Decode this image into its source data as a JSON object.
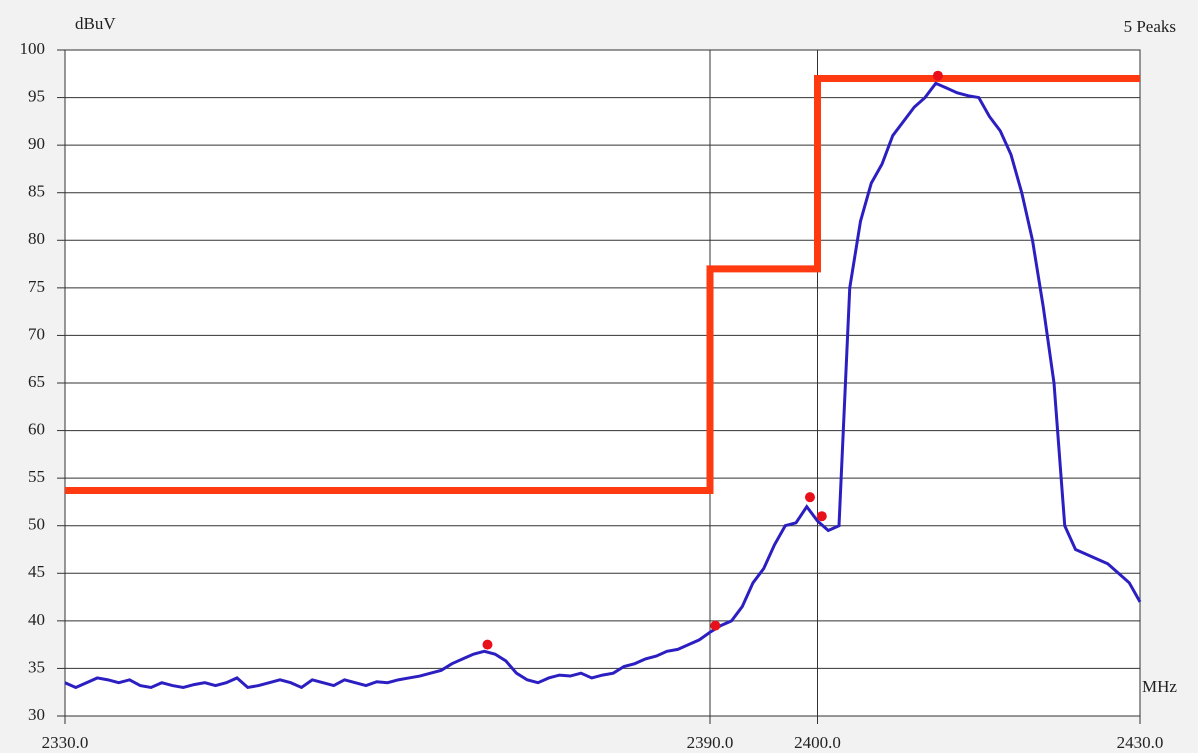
{
  "chart_data": {
    "type": "line",
    "y_label": "dBuV",
    "x_label": "MHz",
    "annotation": "5 Peaks",
    "xlim": [
      2330,
      2430
    ],
    "ylim": [
      30,
      100
    ],
    "xticks": [
      {
        "value": 2330,
        "label": "2330.0"
      },
      {
        "value": 2390,
        "label": "2390.0"
      },
      {
        "value": 2400,
        "label": "2400.0"
      },
      {
        "value": 2430,
        "label": "2430.0"
      }
    ],
    "yticks": [
      30,
      35,
      40,
      45,
      50,
      55,
      60,
      65,
      70,
      75,
      80,
      85,
      90,
      95,
      100
    ],
    "grid": true,
    "series": [
      {
        "color": "#ff3a10",
        "x": [
          2330,
          2390,
          2390,
          2400,
          2400,
          2430
        ],
        "values": [
          53.7,
          53.7,
          77,
          77,
          97,
          97
        ]
      },
      {
        "color": "#2c1fc2",
        "x": [
          2330,
          2331,
          2332,
          2333,
          2334,
          2335,
          2336,
          2337,
          2338,
          2339,
          2340,
          2341,
          2342,
          2343,
          2344,
          2345,
          2346,
          2347,
          2348,
          2349,
          2350,
          2351,
          2352,
          2353,
          2354,
          2355,
          2356,
          2357,
          2358,
          2359,
          2360,
          2361,
          2362,
          2363,
          2364,
          2365,
          2366,
          2367,
          2368,
          2369,
          2370,
          2371,
          2372,
          2373,
          2374,
          2375,
          2376,
          2377,
          2378,
          2379,
          2380,
          2381,
          2382,
          2383,
          2384,
          2385,
          2386,
          2387,
          2388,
          2389,
          2390,
          2391,
          2392,
          2393,
          2394,
          2395,
          2396,
          2397,
          2398,
          2399,
          2400,
          2401,
          2402,
          2403,
          2404,
          2405,
          2406,
          2407,
          2408,
          2409,
          2410,
          2411,
          2412,
          2413,
          2414,
          2415,
          2416,
          2417,
          2418,
          2419,
          2420,
          2421,
          2422,
          2423,
          2424,
          2425,
          2426,
          2427,
          2428,
          2429,
          2430
        ],
        "values": [
          33.5,
          33,
          33.5,
          34,
          33.8,
          33.5,
          33.8,
          33.2,
          33,
          33.5,
          33.2,
          33,
          33.3,
          33.5,
          33.2,
          33.5,
          34,
          33,
          33.2,
          33.5,
          33.8,
          33.5,
          33,
          33.8,
          33.5,
          33.2,
          33.8,
          33.5,
          33.2,
          33.6,
          33.5,
          33.8,
          34,
          34.2,
          34.5,
          34.8,
          35.5,
          36,
          36.5,
          36.8,
          36.5,
          35.8,
          34.5,
          33.8,
          33.5,
          34,
          34.3,
          34.2,
          34.5,
          34,
          34.3,
          34.5,
          35.2,
          35.5,
          36,
          36.3,
          36.8,
          37,
          37.5,
          38,
          38.8,
          39.5,
          40,
          41.5,
          44,
          45.5,
          48,
          50,
          50.3,
          52,
          50.5,
          49.5,
          50,
          75,
          82,
          86,
          88,
          91,
          92.5,
          94,
          95,
          96.5,
          96,
          95.5,
          95.2,
          95,
          93,
          91.5,
          89,
          85,
          80,
          73,
          65,
          50,
          47.5,
          47,
          46.5,
          46,
          45,
          44,
          42
        ]
      },
      {
        "color": "#e8101a",
        "marker": "dot",
        "x": [
          2369.3,
          2390.5,
          2399.3,
          2400.4,
          2411.2
        ],
        "values": [
          37.5,
          39.5,
          53,
          51,
          97.3
        ]
      }
    ]
  }
}
